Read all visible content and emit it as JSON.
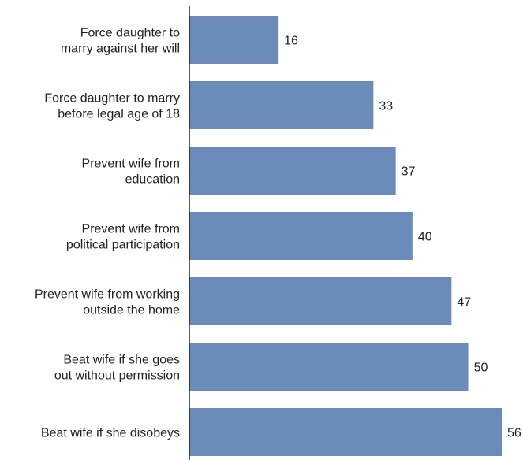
{
  "chart_data": {
    "type": "bar",
    "orientation": "horizontal",
    "categories": [
      [
        "Force daughter to",
        "marry against her will"
      ],
      [
        "Force daughter to marry",
        "before legal age of 18"
      ],
      [
        "Prevent wife from",
        "education"
      ],
      [
        "Prevent wife from",
        "political participation"
      ],
      [
        "Prevent wife from working",
        "outside the home"
      ],
      [
        "Beat wife if she goes",
        "out without permission"
      ],
      [
        "Beat wife if she disobeys"
      ]
    ],
    "values": [
      16,
      33,
      37,
      40,
      47,
      50,
      56
    ],
    "data_labels": [
      "16",
      "33",
      "37",
      "40",
      "47",
      "50",
      "56"
    ],
    "xlim": [
      0,
      56
    ],
    "grid": false,
    "legend": "none",
    "bar_color": "#6b8bb8",
    "axis_color": "#222222",
    "text_color": "#222222"
  }
}
